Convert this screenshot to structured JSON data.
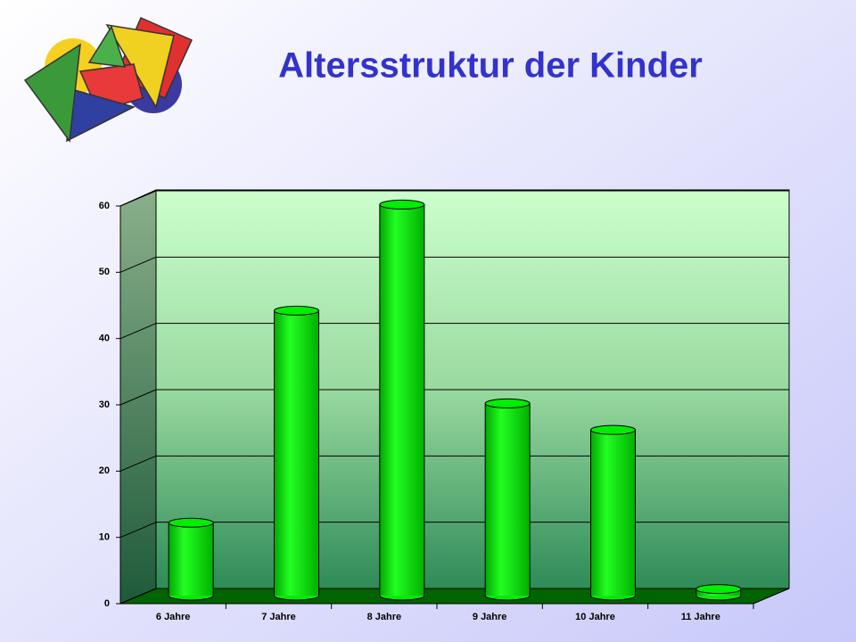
{
  "chart_data": {
    "type": "bar",
    "title": "Altersstruktur der Kinder",
    "categories": [
      "6 Jahre",
      "7 Jahre",
      "8 Jahre",
      "9 Jahre",
      "10 Jahre",
      "11 Jahre"
    ],
    "values": [
      11,
      43,
      59,
      29,
      25,
      1
    ],
    "color": "#00ee00",
    "ylim": [
      0,
      60
    ],
    "yticks": [
      0,
      10,
      20,
      30,
      40,
      50,
      60
    ],
    "grid": true
  }
}
